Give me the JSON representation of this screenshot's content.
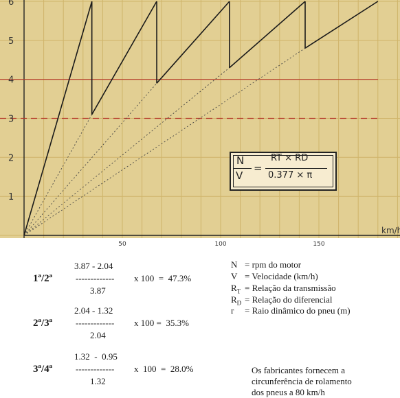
{
  "chart_data": {
    "type": "line",
    "x_unit_label": "km/h",
    "x_ticks": [
      50,
      100,
      150
    ],
    "y_ticks": [
      1,
      2,
      3,
      4,
      5,
      6
    ],
    "xlim": [
      0,
      180
    ],
    "ylim": [
      0,
      6
    ],
    "grid": true,
    "series": [
      {
        "values": [
          [
            0,
            0
          ],
          [
            34.5,
            6
          ]
        ]
      },
      {
        "values": [
          [
            34.5,
            3.1
          ],
          [
            67.5,
            6
          ]
        ]
      },
      {
        "values": [
          [
            67.5,
            3.9
          ],
          [
            104.5,
            6
          ]
        ]
      },
      {
        "values": [
          [
            104.5,
            4.3
          ],
          [
            143,
            6
          ]
        ]
      },
      {
        "values": [
          [
            143,
            4.8
          ],
          [
            180,
            6
          ]
        ]
      }
    ],
    "reference_lines": [
      {
        "y": 4.0,
        "style": "solid",
        "color": "#b53a2a"
      },
      {
        "y": 3.0,
        "style": "dashed",
        "color": "#b53a2a"
      }
    ],
    "dotted_rays": [
      {
        "to": [
          34.5,
          3.1
        ]
      },
      {
        "to": [
          67.5,
          3.9
        ]
      },
      {
        "to": [
          104.5,
          4.3
        ]
      },
      {
        "to": [
          143,
          4.8
        ]
      }
    ],
    "y_tick_labels": [
      "1",
      "2",
      "3",
      "4",
      "5",
      "6"
    ],
    "x_tick_labels": [
      "50",
      "100",
      "150"
    ]
  },
  "formula": {
    "lhs_num": "N",
    "lhs_den": "V",
    "eq": "=",
    "rhs_num": "RT × RD",
    "rhs_den": "0.377 × π"
  },
  "calcs": [
    {
      "gear": "1ª/2ª",
      "top": "3.87 - 2.04",
      "dash": "-------------",
      "rest": "x 100  =  47.3%",
      "bottom": "3.87"
    },
    {
      "gear": "2ª/3ª",
      "top": "2.04 - 1.32",
      "dash": "-------------",
      "rest": "x 100 =  35.3%",
      "bottom": "2.04"
    },
    {
      "gear": "3ª/4ª",
      "top": "1.32  -  0.95",
      "dash": "-------------",
      "rest": "x  100  =  28.0%",
      "bottom": "1.32"
    }
  ],
  "legend": [
    {
      "sym": "N",
      "sub": "",
      "text": "= rpm do motor"
    },
    {
      "sym": "V",
      "sub": "",
      "text": "= Velocidade (km/h)"
    },
    {
      "sym": "R",
      "sub": "T",
      "text": "= Relação da transmissão"
    },
    {
      "sym": "R",
      "sub": "D",
      "text": "= Relação do diferencial"
    },
    {
      "sym": "r",
      "sub": "",
      "text": "= Raio dinâmico do pneu (m)"
    }
  ],
  "note": [
    "Os fabricantes fornecem a",
    "circunferência de rolamento",
    "dos pneus a 80 km/h"
  ]
}
